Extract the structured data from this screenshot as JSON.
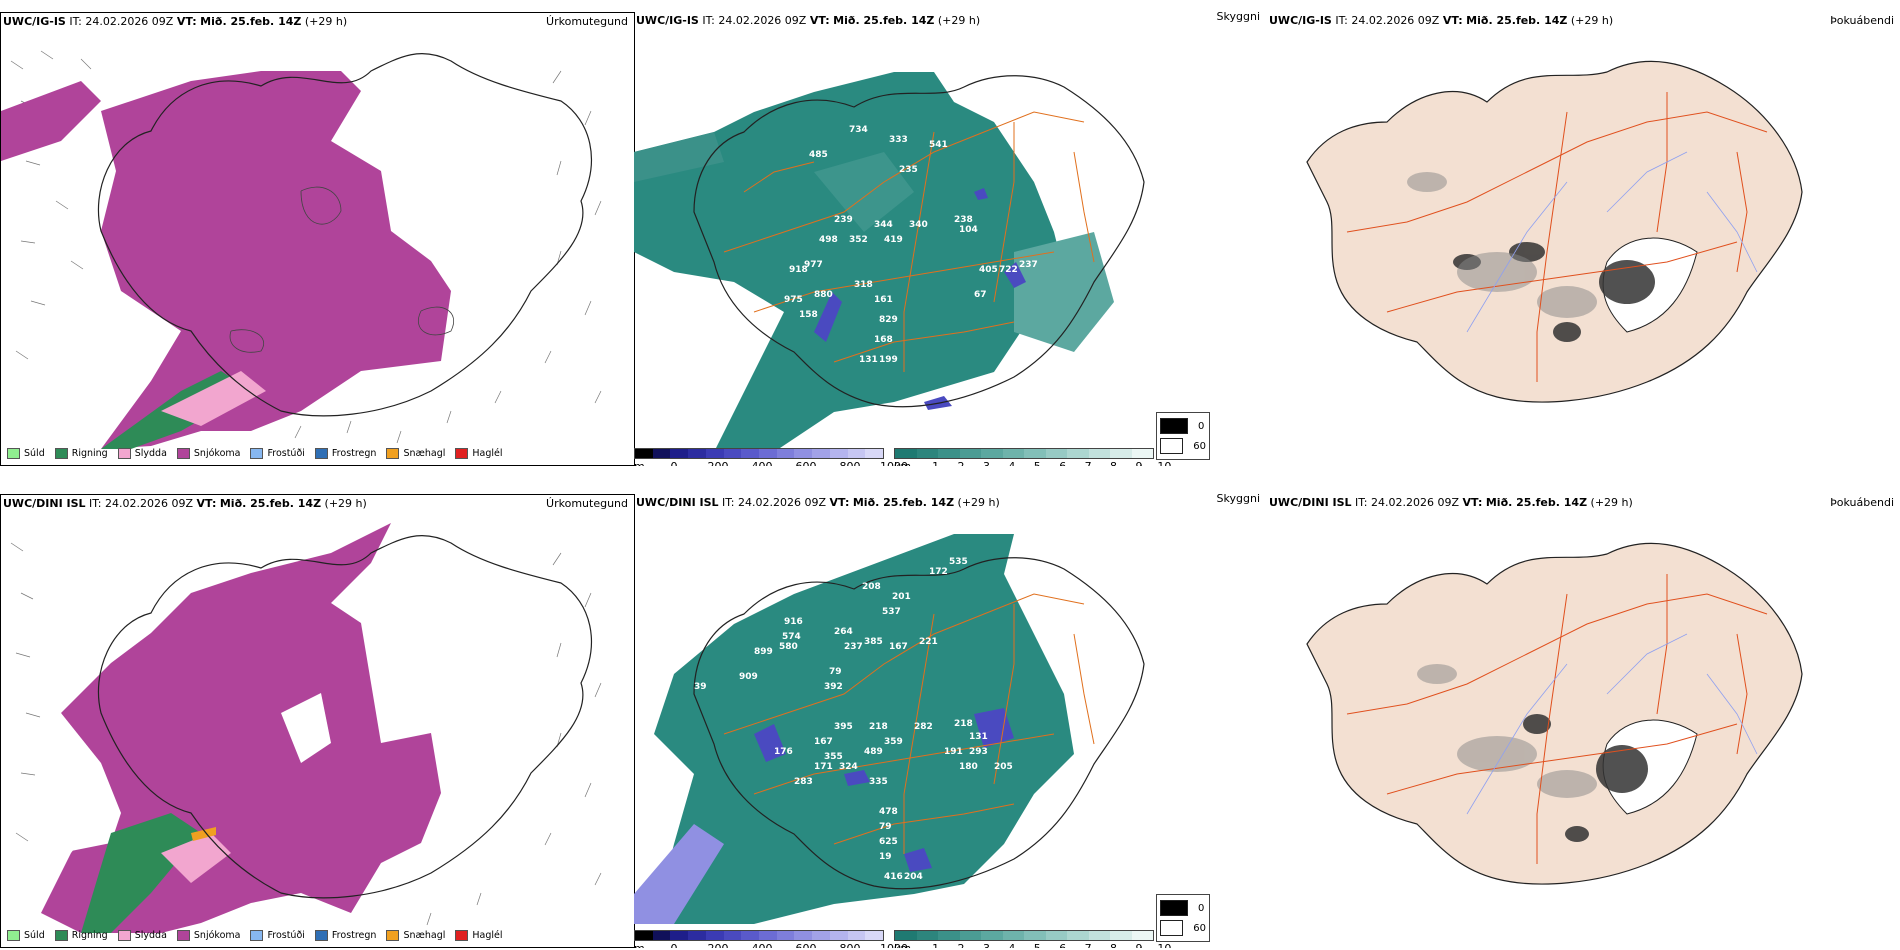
{
  "rows": [
    {
      "model": "UWC/IG-IS",
      "precip_panel": {
        "it_label": "IT:",
        "it_value": "24.02.2026 09Z",
        "vt_label": "VT:",
        "vt_value": "Mið. 25.feb. 14Z",
        "lead": "(+29 h)",
        "title": "Úrkomutegund"
      },
      "vis_panel": {
        "it_label": "IT:",
        "it_value": "24.02.2026 09Z",
        "vt_label": "VT:",
        "vt_value": "Mið. 25.feb. 14Z",
        "lead": "(+29 h)",
        "title": "Skyggni",
        "labels": [
          "734",
          "333",
          "541",
          "485",
          "235",
          "239",
          "344",
          "340",
          "238",
          "498",
          "352",
          "419",
          "104",
          "977",
          "918",
          "405",
          "722",
          "237",
          "318",
          "880",
          "975",
          "161",
          "158",
          "829",
          "168",
          "131",
          "199",
          "67"
        ]
      },
      "fog_panel": {
        "it_label": "IT:",
        "it_value": "24.02.2026 09Z",
        "vt_label": "VT:",
        "vt_value": "Mið. 25.feb. 14Z",
        "lead": "(+29 h)",
        "title": "Þokuábendi"
      }
    },
    {
      "model": "UWC/DINI ISL",
      "precip_panel": {
        "it_label": "IT:",
        "it_value": "24.02.2026 09Z",
        "vt_label": "VT:",
        "vt_value": "Mið. 25.feb. 14Z",
        "lead": "(+29 h)",
        "title": "Úrkomutegund"
      },
      "vis_panel": {
        "it_label": "IT:",
        "it_value": "24.02.2026 09Z",
        "vt_label": "VT:",
        "vt_value": "Mið. 25.feb. 14Z",
        "lead": "(+29 h)",
        "title": "Skyggni",
        "labels": [
          "172",
          "535",
          "208",
          "201",
          "537",
          "916",
          "574",
          "264",
          "237",
          "385",
          "167",
          "221",
          "899",
          "580",
          "909",
          "79",
          "392",
          "39",
          "395",
          "218",
          "282",
          "218",
          "167",
          "359",
          "131",
          "176",
          "355",
          "489",
          "191",
          "293",
          "171",
          "324",
          "180",
          "283",
          "205",
          "335",
          "478",
          "79",
          "625",
          "19",
          "416",
          "204"
        ]
      },
      "fog_panel": {
        "it_label": "IT:",
        "it_value": "24.02.2026 09Z",
        "vt_label": "VT:",
        "vt_value": "Mið. 25.feb. 14Z",
        "lead": "(+29 h)",
        "title": "Þokuábendi"
      }
    }
  ],
  "precip_legend": [
    {
      "label": "Súld",
      "color": "#90ee90"
    },
    {
      "label": "Rigning",
      "color": "#2e8b57"
    },
    {
      "label": "Slydda",
      "color": "#f2a6cf"
    },
    {
      "label": "Snjókoma",
      "color": "#b0449a"
    },
    {
      "label": "Frostúði",
      "color": "#87b7f0"
    },
    {
      "label": "Frostregn",
      "color": "#2f6fb5"
    },
    {
      "label": "Snæhagl",
      "color": "#f0a020"
    },
    {
      "label": "Haglél",
      "color": "#e02020"
    }
  ],
  "height_scale": {
    "unit": "m",
    "ticks": [
      "0",
      "200",
      "400",
      "600",
      "800",
      "1000"
    ],
    "colors": [
      "#000000",
      "#10105a",
      "#1e1e8a",
      "#2c2ca0",
      "#3b3bb4",
      "#4a4ac0",
      "#5a5acb",
      "#6c6cd4",
      "#7e7edb",
      "#9090e2",
      "#a2a2e8",
      "#b4b4ee",
      "#c6c6f2",
      "#d8d8f7"
    ]
  },
  "vis_scale": {
    "unit": "km",
    "ticks": [
      "1",
      "2",
      "3",
      "4",
      "5",
      "6",
      "7",
      "8",
      "9",
      "10"
    ],
    "colors": [
      "#1f7a72",
      "#2d857d",
      "#3b9189",
      "#4b9c94",
      "#5ca8a0",
      "#6eb3ab",
      "#82bfb8",
      "#97cac4",
      "#acd6d0",
      "#c2e1dd",
      "#d7ece9",
      "#ecf7f5"
    ]
  },
  "fog_legend": [
    {
      "label": "0",
      "color": "#000000"
    },
    {
      "label": "60",
      "color": "#ffffff"
    }
  ],
  "colors": {
    "snow": "#b0449a",
    "rain": "#2e8b57",
    "sleet": "#f2a6cf",
    "hail": "#f0a020",
    "vis_teal": "#2a8a80",
    "land_fog": "#f3e0d2",
    "roads": "#e0701e",
    "rivers": "#8fa0f0"
  }
}
